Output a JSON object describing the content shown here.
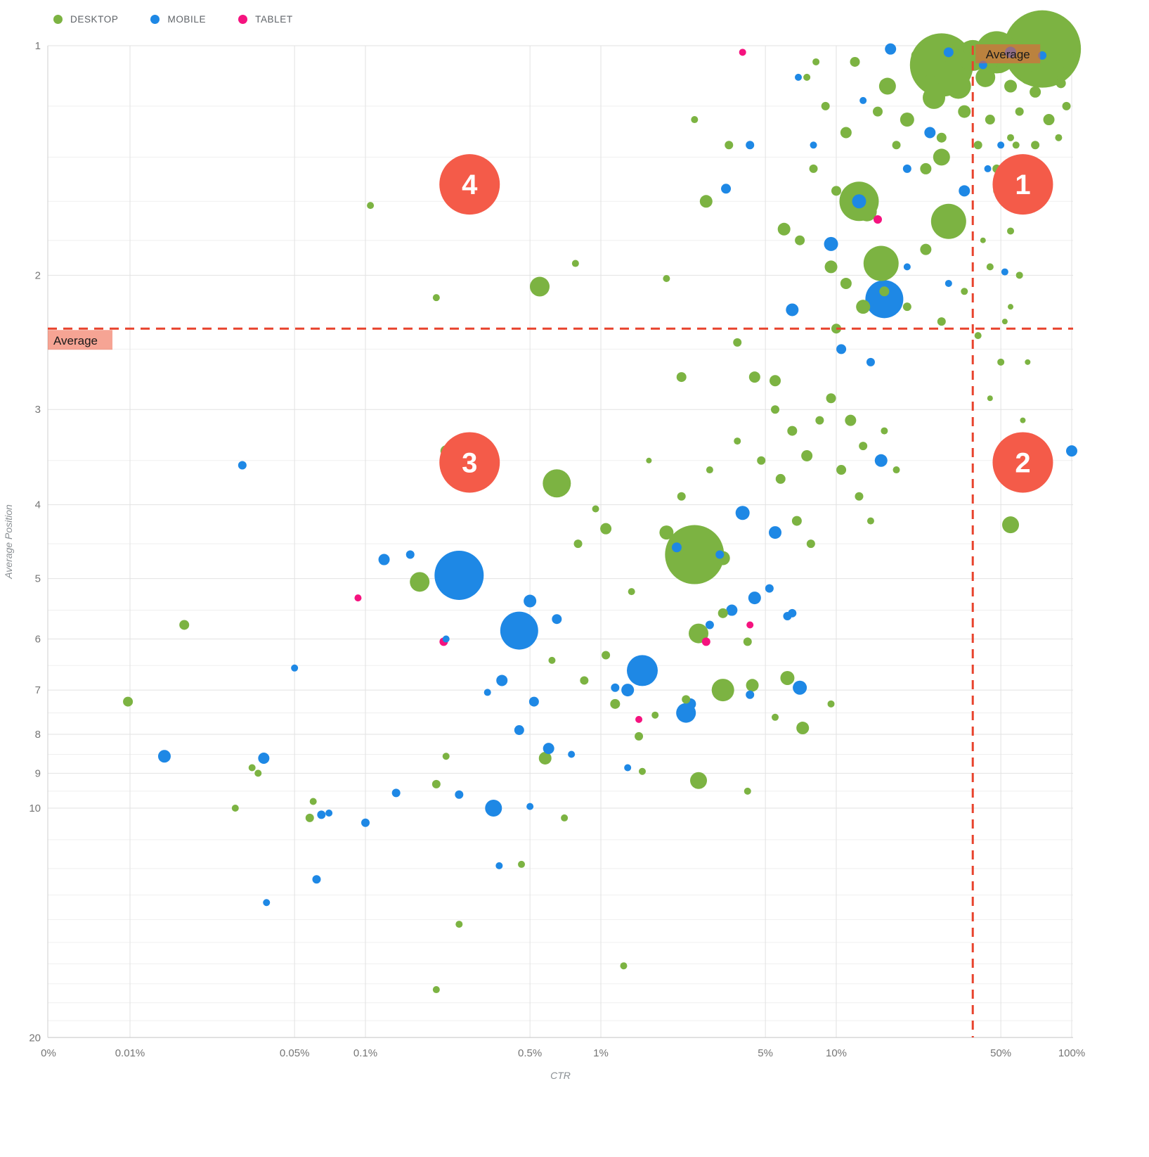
{
  "legend": {
    "items": [
      {
        "label": "DESKTOP",
        "color": "#7CB342"
      },
      {
        "label": "MOBILE",
        "color": "#1E88E5"
      },
      {
        "label": "TABLET",
        "color": "#F5137F"
      }
    ]
  },
  "colors": {
    "grid_major": "#e2e2e2",
    "grid_minor": "#efefef",
    "axis_line": "#cfcfcf",
    "tick_text": "#757575",
    "axis_title_text": "#8a8f93",
    "average_line": "#e8432d",
    "average_label_bg": "rgba(238,90,60,0.55)",
    "average_label_text": "#1a1a1a",
    "quadrant_badge": "#f45b49",
    "quadrant_text": "#ffffff"
  },
  "chart_data": {
    "type": "scatter",
    "variant": "bubble",
    "title": "",
    "xlabel": "CTR",
    "ylabel": "Average Position",
    "x_scale": "log",
    "y_scale": "log-inverted",
    "grid": true,
    "xlim_percent": [
      0.01,
      100
    ],
    "ylim": [
      1,
      20
    ],
    "x_ticks": [
      {
        "label": "0%",
        "value": null
      },
      {
        "label": "0.01%",
        "value": 0.01
      },
      {
        "label": "0.05%",
        "value": 0.05
      },
      {
        "label": "0.1%",
        "value": 0.1
      },
      {
        "label": "0.5%",
        "value": 0.5
      },
      {
        "label": "1%",
        "value": 1
      },
      {
        "label": "5%",
        "value": 5
      },
      {
        "label": "10%",
        "value": 10
      },
      {
        "label": "50%",
        "value": 50
      },
      {
        "label": "100%",
        "value": 100
      }
    ],
    "y_ticks": [
      1,
      2,
      3,
      4,
      5,
      6,
      7,
      8,
      9,
      10,
      20
    ],
    "y_minor_gridlines": [
      1.2,
      1.4,
      1.6,
      1.8,
      2.5,
      3.5,
      4.5,
      5.5,
      6.5,
      7.5,
      8.5,
      9.5,
      11,
      12,
      13,
      14,
      15,
      16,
      17,
      18,
      19
    ],
    "average_label": "Average",
    "average_ctr_percent": 38,
    "average_position": 2.35,
    "quadrants": [
      {
        "label": "1",
        "ctr": 62,
        "position": 1.52
      },
      {
        "label": "2",
        "ctr": 62,
        "position": 3.52
      },
      {
        "label": "3",
        "ctr": 0.277,
        "position": 3.52
      },
      {
        "label": "4",
        "ctr": 0.277,
        "position": 1.52
      }
    ],
    "series": [
      {
        "name": "DESKTOP",
        "color": "#7CB342",
        "points": [
          [
            75,
            1.01,
            55
          ],
          [
            28,
            1.06,
            45
          ],
          [
            48,
            1.02,
            30
          ],
          [
            38,
            1.03,
            22
          ],
          [
            58,
            1.04,
            16
          ],
          [
            43,
            1.1,
            14
          ],
          [
            33,
            1.13,
            18
          ],
          [
            25,
            1.12,
            12
          ],
          [
            65,
            1.1,
            10
          ],
          [
            85,
            1.07,
            12
          ],
          [
            95,
            1.03,
            10
          ],
          [
            55,
            1.13,
            9
          ],
          [
            70,
            1.15,
            8
          ],
          [
            90,
            1.12,
            7
          ],
          [
            60,
            1.01,
            8
          ],
          [
            50,
            1.07,
            7
          ],
          [
            36,
            1.01,
            6
          ],
          [
            30,
            1.02,
            14
          ],
          [
            22,
            1.03,
            8
          ],
          [
            26,
            1.17,
            16
          ],
          [
            20,
            1.25,
            10
          ],
          [
            35,
            1.22,
            9
          ],
          [
            45,
            1.25,
            7
          ],
          [
            60,
            1.22,
            6
          ],
          [
            80,
            1.25,
            8
          ],
          [
            95,
            1.2,
            6
          ],
          [
            28,
            1.32,
            7
          ],
          [
            40,
            1.35,
            6
          ],
          [
            55,
            1.32,
            5
          ],
          [
            70,
            1.35,
            6
          ],
          [
            88,
            1.32,
            5
          ],
          [
            18,
            1.35,
            6
          ],
          [
            24,
            1.45,
            8
          ],
          [
            28,
            1.4,
            12
          ],
          [
            48,
            1.45,
            6
          ],
          [
            65,
            1.45,
            5
          ],
          [
            15,
            1.22,
            7
          ],
          [
            12,
            1.05,
            7
          ],
          [
            16,
            1.12,
            6
          ],
          [
            16.5,
            1.13,
            12
          ],
          [
            8.2,
            1.05,
            5
          ],
          [
            7.5,
            1.1,
            5
          ],
          [
            9,
            1.2,
            6
          ],
          [
            11,
            1.3,
            8
          ],
          [
            8,
            1.45,
            6
          ],
          [
            10,
            1.55,
            7
          ],
          [
            12.5,
            1.6,
            28
          ],
          [
            13.5,
            1.65,
            14
          ],
          [
            6,
            1.74,
            9
          ],
          [
            7,
            1.8,
            7
          ],
          [
            9.5,
            1.95,
            9
          ],
          [
            15.5,
            1.93,
            25
          ],
          [
            30,
            1.7,
            25
          ],
          [
            24,
            1.85,
            8
          ],
          [
            11,
            2.05,
            8
          ],
          [
            13,
            2.2,
            10
          ],
          [
            10,
            2.35,
            7
          ],
          [
            16,
            2.1,
            7
          ],
          [
            20,
            2.2,
            6
          ],
          [
            28,
            2.3,
            6
          ],
          [
            35,
            2.1,
            5
          ],
          [
            45,
            1.95,
            5
          ],
          [
            40,
            2.4,
            5
          ],
          [
            55,
            2.2,
            4
          ],
          [
            2.5,
            1.25,
            5
          ],
          [
            3.5,
            1.35,
            6
          ],
          [
            2.8,
            1.6,
            9
          ],
          [
            2.2,
            2.72,
            7
          ],
          [
            5.5,
            2.75,
            8
          ],
          [
            3.8,
            2.45,
            6
          ],
          [
            1.9,
            2.02,
            5
          ],
          [
            0.55,
            2.07,
            14
          ],
          [
            0.78,
            1.93,
            5
          ],
          [
            0.105,
            1.62,
            5
          ],
          [
            0.2,
            2.14,
            5
          ],
          [
            0.65,
            3.75,
            20
          ],
          [
            1.9,
            4.35,
            10
          ],
          [
            2.5,
            4.65,
            42
          ],
          [
            1.05,
            4.3,
            8
          ],
          [
            0.8,
            4.5,
            6
          ],
          [
            3.3,
            4.7,
            10
          ],
          [
            4.5,
            2.72,
            8
          ],
          [
            5.5,
            3,
            6
          ],
          [
            6.5,
            3.2,
            7
          ],
          [
            4.8,
            3.5,
            6
          ],
          [
            5.8,
            3.7,
            7
          ],
          [
            7.5,
            3.45,
            8
          ],
          [
            8.5,
            3.1,
            6
          ],
          [
            6.8,
            4.2,
            7
          ],
          [
            7.8,
            4.5,
            6
          ],
          [
            3.8,
            3.3,
            5
          ],
          [
            2.9,
            3.6,
            5
          ],
          [
            2.2,
            3.9,
            6
          ],
          [
            1.6,
            3.5,
            4
          ],
          [
            9.5,
            2.9,
            7
          ],
          [
            11.5,
            3.1,
            8
          ],
          [
            13,
            3.35,
            6
          ],
          [
            10.5,
            3.6,
            7
          ],
          [
            12.5,
            3.9,
            6
          ],
          [
            16,
            3.2,
            5
          ],
          [
            18,
            3.6,
            5
          ],
          [
            14,
            4.2,
            5
          ],
          [
            55,
            4.25,
            12
          ],
          [
            0.22,
            3.4,
            8
          ],
          [
            0.95,
            4.05,
            5
          ],
          [
            0.17,
            5.05,
            14
          ],
          [
            2.6,
            5.9,
            14
          ],
          [
            3.3,
            5.55,
            7
          ],
          [
            1.35,
            5.2,
            5
          ],
          [
            0.017,
            5.75,
            7
          ],
          [
            4.2,
            6.05,
            6
          ],
          [
            0.62,
            6.4,
            5
          ],
          [
            1.05,
            6.3,
            6
          ],
          [
            0.85,
            6.8,
            6
          ],
          [
            1.15,
            7.3,
            7
          ],
          [
            3.3,
            7,
            16
          ],
          [
            4.4,
            6.9,
            9
          ],
          [
            6.2,
            6.75,
            10
          ],
          [
            7.2,
            7.85,
            9
          ],
          [
            2.3,
            7.2,
            6
          ],
          [
            1.7,
            7.55,
            5
          ],
          [
            0.0098,
            7.25,
            7
          ],
          [
            1.45,
            8.05,
            6
          ],
          [
            5.5,
            7.6,
            5
          ],
          [
            9.5,
            7.3,
            5
          ],
          [
            0.58,
            8.6,
            9
          ],
          [
            0.033,
            8.85,
            5
          ],
          [
            0.035,
            9,
            5
          ],
          [
            0.22,
            8.55,
            5
          ],
          [
            1.5,
            8.95,
            5
          ],
          [
            2.6,
            9.2,
            12
          ],
          [
            4.2,
            9.5,
            5
          ],
          [
            0.2,
            9.3,
            6
          ],
          [
            0.06,
            9.8,
            5
          ],
          [
            0.058,
            10.3,
            6
          ],
          [
            0.7,
            10.3,
            5
          ],
          [
            0.028,
            10,
            5
          ],
          [
            0.46,
            11.85,
            5
          ],
          [
            0.25,
            14.2,
            5
          ],
          [
            1.25,
            16.1,
            5
          ],
          [
            0.2,
            17.3,
            5
          ],
          [
            48,
            1.55,
            5
          ],
          [
            55,
            1.75,
            5
          ],
          [
            60,
            2,
            5
          ],
          [
            52,
            2.3,
            4
          ],
          [
            65,
            2.6,
            4
          ],
          [
            45,
            2.9,
            4
          ],
          [
            58,
            1.35,
            5
          ],
          [
            70,
            1.6,
            4
          ],
          [
            42,
            1.8,
            4
          ],
          [
            50,
            2.6,
            5
          ],
          [
            62,
            3.1,
            4
          ]
        ]
      },
      {
        "name": "MOBILE",
        "color": "#1E88E5",
        "points": [
          [
            17,
            1.01,
            8
          ],
          [
            30,
            1.02,
            7
          ],
          [
            55,
            1.02,
            8
          ],
          [
            75,
            1.03,
            6
          ],
          [
            42,
            1.06,
            6
          ],
          [
            25,
            1.3,
            8
          ],
          [
            35,
            1.55,
            8
          ],
          [
            20,
            1.45,
            6
          ],
          [
            50,
            1.35,
            5
          ],
          [
            13,
            1.18,
            5
          ],
          [
            6.9,
            1.1,
            5
          ],
          [
            4.3,
            1.35,
            6
          ],
          [
            3.4,
            1.54,
            7
          ],
          [
            9.5,
            1.82,
            10
          ],
          [
            12.5,
            1.6,
            10
          ],
          [
            16,
            2.15,
            27
          ],
          [
            6.5,
            2.22,
            9
          ],
          [
            8,
            1.35,
            5
          ],
          [
            10.5,
            2.5,
            7
          ],
          [
            14,
            2.6,
            6
          ],
          [
            20,
            1.95,
            5
          ],
          [
            30,
            2.05,
            5
          ],
          [
            52,
            1.98,
            5
          ],
          [
            44,
            1.45,
            5
          ],
          [
            15.5,
            3.5,
            9
          ],
          [
            100,
            3.4,
            8
          ],
          [
            4,
            4.1,
            10
          ],
          [
            5.5,
            4.35,
            9
          ],
          [
            2.1,
            4.55,
            7
          ],
          [
            3.2,
            4.65,
            6
          ],
          [
            0.12,
            4.72,
            8
          ],
          [
            0.155,
            4.65,
            6
          ],
          [
            0.03,
            3.55,
            6
          ],
          [
            4.5,
            5.3,
            9
          ],
          [
            5.2,
            5.15,
            6
          ],
          [
            6.2,
            5.6,
            6
          ],
          [
            0.25,
            4.95,
            35
          ],
          [
            0.45,
            5.85,
            27
          ],
          [
            0.5,
            5.35,
            9
          ],
          [
            0.65,
            5.65,
            7
          ],
          [
            0.22,
            6,
            5
          ],
          [
            3.6,
            5.5,
            8
          ],
          [
            2.9,
            5.75,
            6
          ],
          [
            6.5,
            5.55,
            6
          ],
          [
            1.5,
            6.6,
            22
          ],
          [
            1.3,
            7,
            9
          ],
          [
            1.15,
            6.95,
            6
          ],
          [
            0.38,
            6.8,
            8
          ],
          [
            0.33,
            7.05,
            5
          ],
          [
            0.52,
            7.25,
            7
          ],
          [
            2.3,
            7.5,
            14
          ],
          [
            2.4,
            7.3,
            8
          ],
          [
            7,
            6.95,
            10
          ],
          [
            4.3,
            7.1,
            6
          ],
          [
            0.05,
            6.55,
            5
          ],
          [
            0.45,
            7.9,
            7
          ],
          [
            0.6,
            8.35,
            8
          ],
          [
            0.75,
            8.5,
            5
          ],
          [
            0.014,
            8.55,
            9
          ],
          [
            0.037,
            8.6,
            8
          ],
          [
            0.135,
            9.55,
            6
          ],
          [
            0.25,
            9.6,
            6
          ],
          [
            0.35,
            10,
            12
          ],
          [
            0.5,
            9.95,
            5
          ],
          [
            0.065,
            10.2,
            6
          ],
          [
            0.07,
            10.15,
            5
          ],
          [
            0.1,
            10.45,
            6
          ],
          [
            1.3,
            8.85,
            5
          ],
          [
            0.062,
            12.4,
            6
          ],
          [
            0.37,
            11.9,
            5
          ],
          [
            0.038,
            13.3,
            5
          ]
        ]
      },
      {
        "name": "TABLET",
        "color": "#F5137F",
        "points": [
          [
            4,
            1.02,
            5
          ],
          [
            15,
            1.69,
            6
          ],
          [
            0.093,
            5.3,
            5
          ],
          [
            0.215,
            6.05,
            6
          ],
          [
            2.8,
            6.05,
            6
          ],
          [
            4.3,
            5.75,
            5
          ],
          [
            1.45,
            7.65,
            5
          ]
        ]
      }
    ]
  }
}
